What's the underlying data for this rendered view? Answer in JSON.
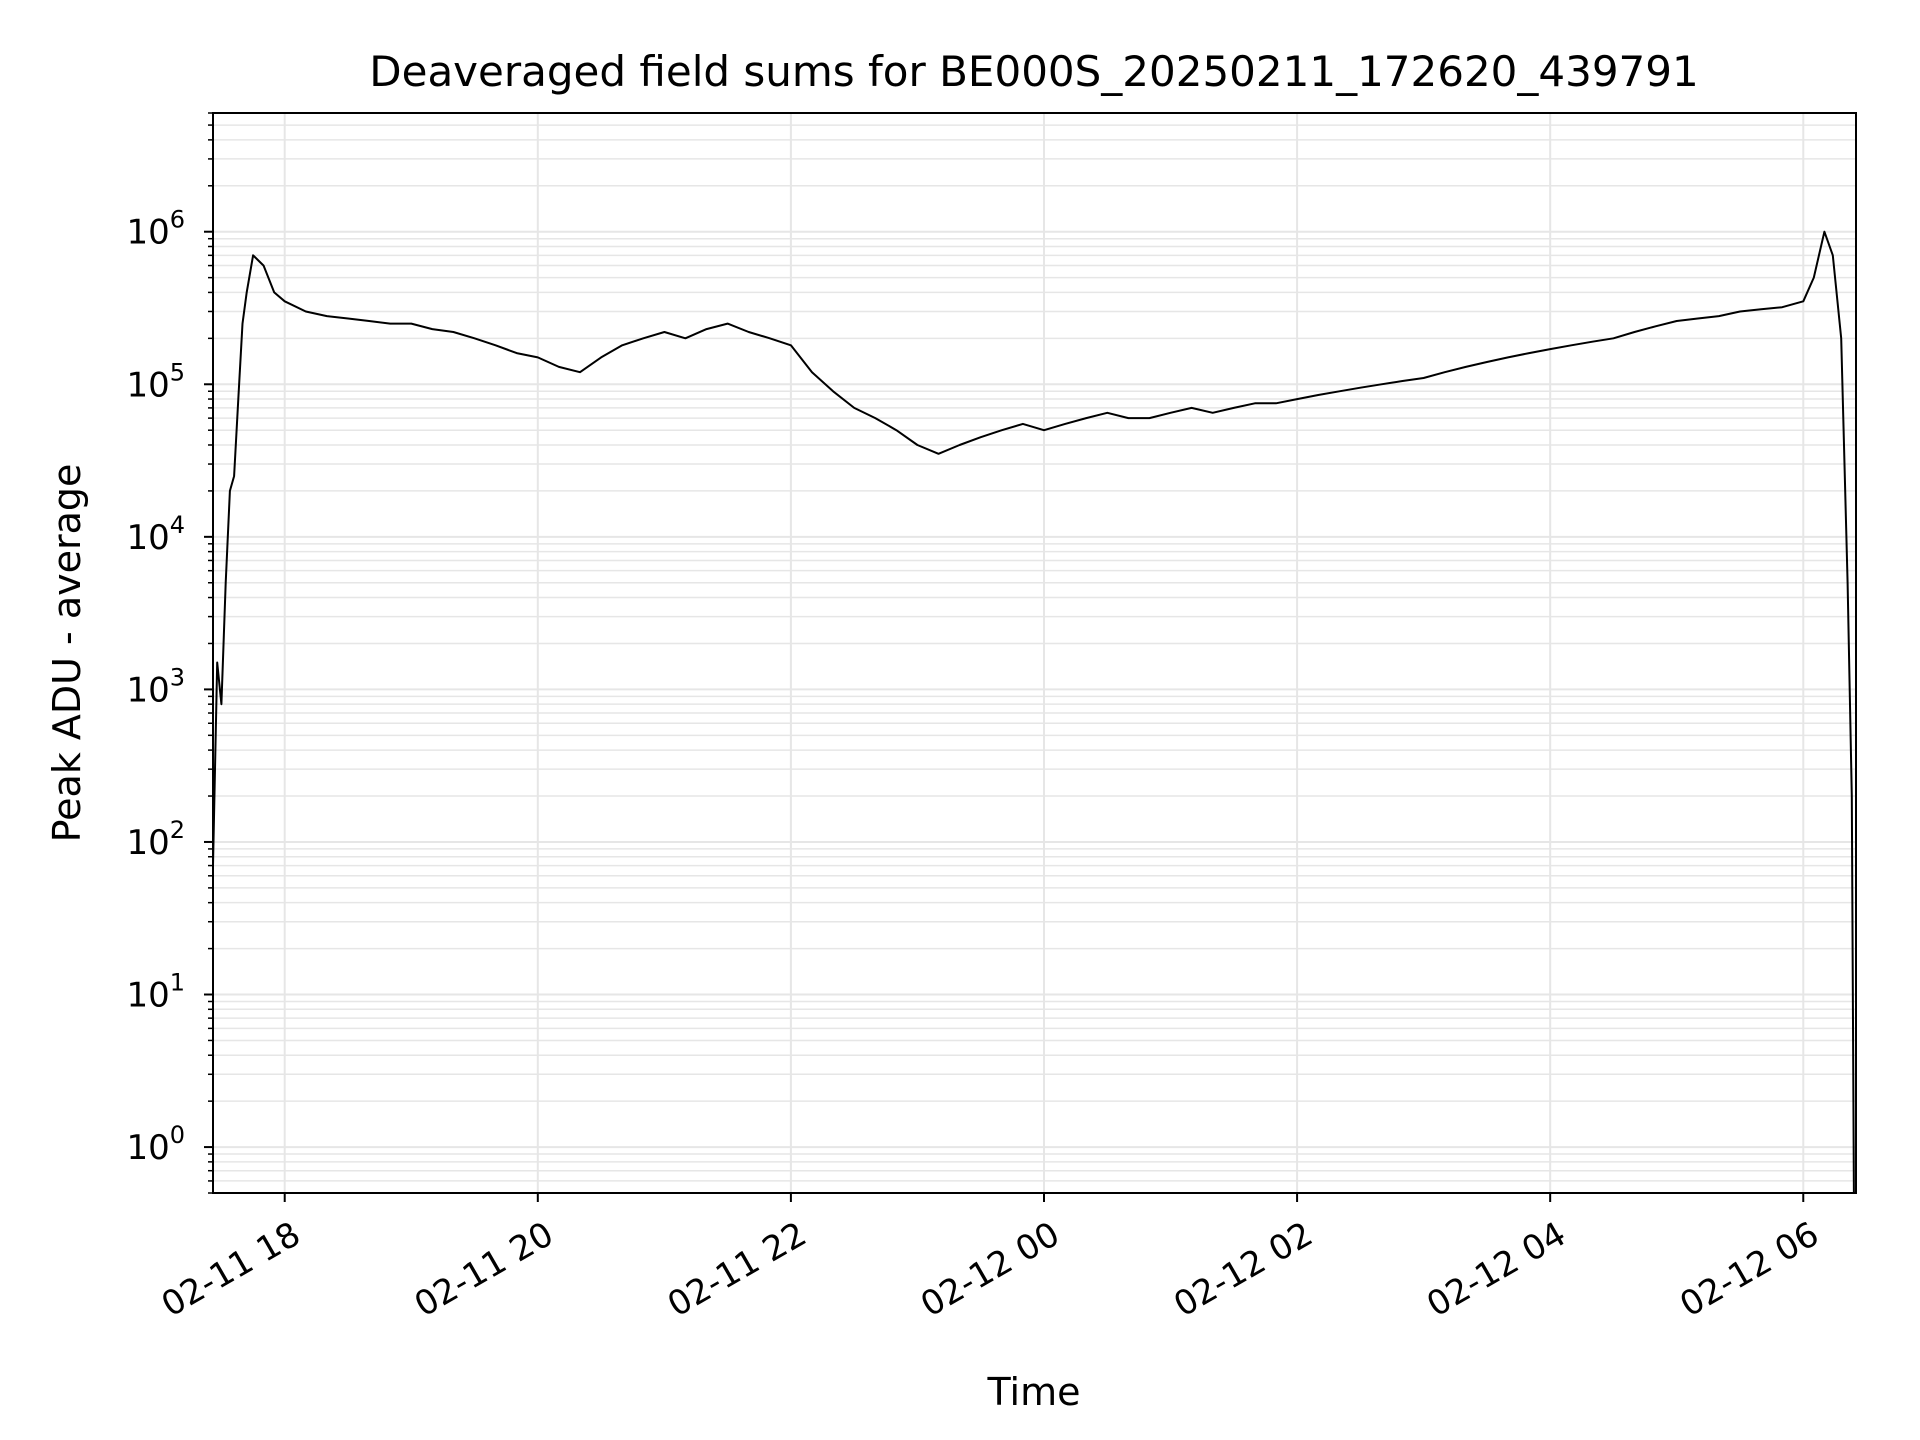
{
  "chart_data": {
    "type": "line",
    "title": "Deaveraged field sums for BE000S_20250211_172620_439791",
    "xlabel": "Time",
    "ylabel": "Peak ADU - average",
    "yscale": "log",
    "xlim": [
      "2025-02-11 17:26",
      "2025-02-12 06:25"
    ],
    "ylim": [
      0.5,
      6000000
    ],
    "grid": true,
    "grid_color": "#e6e6e6",
    "line_color": "#000000",
    "x_ticks": [
      {
        "t": "2025-02-11 18:00",
        "label": "02-11 18"
      },
      {
        "t": "2025-02-11 20:00",
        "label": "02-11 20"
      },
      {
        "t": "2025-02-11 22:00",
        "label": "02-11 22"
      },
      {
        "t": "2025-02-12 00:00",
        "label": "02-12 00"
      },
      {
        "t": "2025-02-12 02:00",
        "label": "02-12 02"
      },
      {
        "t": "2025-02-12 04:00",
        "label": "02-12 04"
      },
      {
        "t": "2025-02-12 06:00",
        "label": "02-12 06"
      }
    ],
    "y_ticks": [
      {
        "v": 1,
        "base": "10",
        "exp": "0"
      },
      {
        "v": 10,
        "base": "10",
        "exp": "1"
      },
      {
        "v": 100,
        "base": "10",
        "exp": "2"
      },
      {
        "v": 1000,
        "base": "10",
        "exp": "3"
      },
      {
        "v": 10000,
        "base": "10",
        "exp": "4"
      },
      {
        "v": 100000,
        "base": "10",
        "exp": "5"
      },
      {
        "v": 1000000,
        "base": "10",
        "exp": "6"
      }
    ],
    "series": [
      {
        "x": [
          "2025-02-11 17:26",
          "2025-02-11 17:28",
          "2025-02-11 17:30",
          "2025-02-11 17:32",
          "2025-02-11 17:34",
          "2025-02-11 17:36",
          "2025-02-11 17:38",
          "2025-02-11 17:40",
          "2025-02-11 17:42",
          "2025-02-11 17:45",
          "2025-02-11 17:50",
          "2025-02-11 17:55",
          "2025-02-11 18:00",
          "2025-02-11 18:10",
          "2025-02-11 18:20",
          "2025-02-11 18:30",
          "2025-02-11 18:40",
          "2025-02-11 18:50",
          "2025-02-11 19:00",
          "2025-02-11 19:10",
          "2025-02-11 19:20",
          "2025-02-11 19:30",
          "2025-02-11 19:40",
          "2025-02-11 19:50",
          "2025-02-11 20:00",
          "2025-02-11 20:10",
          "2025-02-11 20:20",
          "2025-02-11 20:30",
          "2025-02-11 20:40",
          "2025-02-11 20:50",
          "2025-02-11 21:00",
          "2025-02-11 21:10",
          "2025-02-11 21:20",
          "2025-02-11 21:30",
          "2025-02-11 21:40",
          "2025-02-11 21:50",
          "2025-02-11 22:00",
          "2025-02-11 22:10",
          "2025-02-11 22:20",
          "2025-02-11 22:30",
          "2025-02-11 22:40",
          "2025-02-11 22:50",
          "2025-02-11 23:00",
          "2025-02-11 23:10",
          "2025-02-11 23:20",
          "2025-02-11 23:30",
          "2025-02-11 23:40",
          "2025-02-11 23:50",
          "2025-02-12 00:00",
          "2025-02-12 00:10",
          "2025-02-12 00:20",
          "2025-02-12 00:30",
          "2025-02-12 00:40",
          "2025-02-12 00:50",
          "2025-02-12 01:00",
          "2025-02-12 01:10",
          "2025-02-12 01:20",
          "2025-02-12 01:30",
          "2025-02-12 01:40",
          "2025-02-12 01:50",
          "2025-02-12 02:00",
          "2025-02-12 02:10",
          "2025-02-12 02:20",
          "2025-02-12 02:30",
          "2025-02-12 02:40",
          "2025-02-12 02:50",
          "2025-02-12 03:00",
          "2025-02-12 03:10",
          "2025-02-12 03:20",
          "2025-02-12 03:30",
          "2025-02-12 03:40",
          "2025-02-12 03:50",
          "2025-02-12 04:00",
          "2025-02-12 04:10",
          "2025-02-12 04:20",
          "2025-02-12 04:30",
          "2025-02-12 04:40",
          "2025-02-12 04:50",
          "2025-02-12 05:00",
          "2025-02-12 05:10",
          "2025-02-12 05:20",
          "2025-02-12 05:30",
          "2025-02-12 05:40",
          "2025-02-12 05:50",
          "2025-02-12 06:00",
          "2025-02-12 06:05",
          "2025-02-12 06:10",
          "2025-02-12 06:14",
          "2025-02-12 06:18",
          "2025-02-12 06:21",
          "2025-02-12 06:23",
          "2025-02-12 06:24"
        ],
        "y": [
          70,
          1500,
          800,
          5000,
          20000,
          25000,
          80000,
          250000,
          400000,
          700000,
          600000,
          400000,
          350000,
          300000,
          280000,
          270000,
          260000,
          250000,
          250000,
          230000,
          220000,
          200000,
          180000,
          160000,
          150000,
          130000,
          120000,
          150000,
          180000,
          200000,
          220000,
          200000,
          230000,
          250000,
          220000,
          200000,
          180000,
          120000,
          90000,
          70000,
          60000,
          50000,
          40000,
          35000,
          40000,
          45000,
          50000,
          55000,
          50000,
          55000,
          60000,
          65000,
          60000,
          60000,
          65000,
          70000,
          65000,
          70000,
          75000,
          75000,
          80000,
          85000,
          90000,
          95000,
          100000,
          105000,
          110000,
          120000,
          130000,
          140000,
          150000,
          160000,
          170000,
          180000,
          190000,
          200000,
          220000,
          240000,
          260000,
          270000,
          280000,
          300000,
          310000,
          320000,
          350000,
          500000,
          1000000,
          700000,
          200000,
          5000,
          200,
          0.5
        ]
      }
    ]
  }
}
